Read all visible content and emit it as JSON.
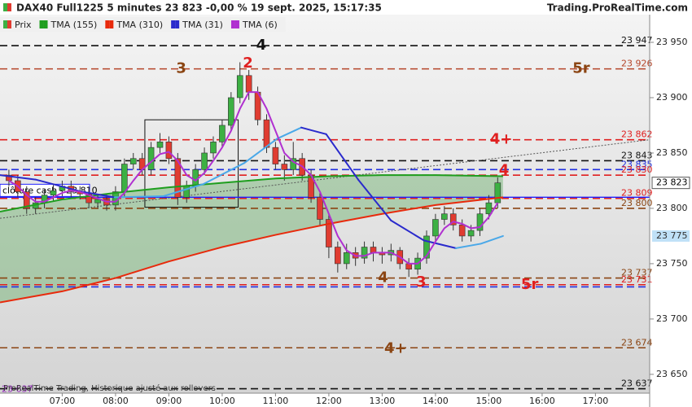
{
  "chart_data": {
    "type": "candlestick",
    "title": "DAX40 Full1225 5 minutes 23 823 -0,00 % 19 sept. 2025, 15:17:35",
    "source": "Trading.ProRealTime.com",
    "footnote": "ProRealTime Trading, Historique ajusté aux rollovers",
    "xlim": [
      "05:50",
      "18:01"
    ],
    "ylim": [
      23633,
      23975
    ],
    "xticks": [
      "07:00",
      "08:00",
      "09:00",
      "10:00",
      "11:00",
      "12:00",
      "13:00",
      "14:00",
      "15:00",
      "16:00",
      "17:00"
    ],
    "yticks": [
      {
        "value": 23950,
        "label": "23 950"
      },
      {
        "value": 23900,
        "label": "23 900"
      },
      {
        "value": 23850,
        "label": "23 850"
      },
      {
        "value": 23800,
        "label": "23 800"
      },
      {
        "value": 23750,
        "label": "23 750"
      },
      {
        "value": 23700,
        "label": "23 700"
      },
      {
        "value": 23650,
        "label": "23 650"
      }
    ],
    "candles": {
      "name": "Prix",
      "up_color": "#3cb043",
      "down_color": "#e03c31",
      "x": [
        "06:00",
        "06:10",
        "06:20",
        "06:30",
        "06:40",
        "06:50",
        "07:00",
        "07:10",
        "07:20",
        "07:30",
        "07:40",
        "07:50",
        "08:00",
        "08:10",
        "08:20",
        "08:30",
        "08:40",
        "08:50",
        "09:00",
        "09:10",
        "09:20",
        "09:30",
        "09:40",
        "09:50",
        "10:00",
        "10:10",
        "10:20",
        "10:30",
        "10:40",
        "10:50",
        "11:00",
        "11:10",
        "11:20",
        "11:30",
        "11:40",
        "11:50",
        "12:00",
        "12:10",
        "12:20",
        "12:30",
        "12:40",
        "12:50",
        "13:00",
        "13:10",
        "13:20",
        "13:30",
        "13:40",
        "13:50",
        "14:00",
        "14:10",
        "14:20",
        "14:30",
        "14:40",
        "14:50",
        "15:00",
        "15:10"
      ],
      "open": [
        23830,
        23825,
        23815,
        23800,
        23805,
        23812,
        23816,
        23820,
        23815,
        23813,
        23805,
        23808,
        23803,
        23815,
        23840,
        23845,
        23835,
        23855,
        23860,
        23845,
        23810,
        23820,
        23835,
        23850,
        23860,
        23875,
        23900,
        23920,
        23905,
        23880,
        23855,
        23840,
        23835,
        23845,
        23830,
        23810,
        23790,
        23765,
        23750,
        23760,
        23755,
        23765,
        23760,
        23758,
        23762,
        23750,
        23745,
        23755,
        23775,
        23790,
        23795,
        23785,
        23775,
        23780,
        23795,
        23805
      ],
      "high": [
        23835,
        23830,
        23820,
        23810,
        23817,
        23821,
        23825,
        23825,
        23820,
        23818,
        23813,
        23813,
        23820,
        23845,
        23850,
        23850,
        23860,
        23868,
        23865,
        23850,
        23825,
        23840,
        23855,
        23865,
        23880,
        23905,
        23932,
        23925,
        23910,
        23885,
        23860,
        23848,
        23860,
        23850,
        23835,
        23815,
        23795,
        23770,
        23768,
        23765,
        23770,
        23770,
        23765,
        23768,
        23765,
        23755,
        23760,
        23780,
        23795,
        23802,
        23800,
        23790,
        23785,
        23800,
        23812,
        23828
      ],
      "low": [
        23820,
        23810,
        23795,
        23795,
        23800,
        23807,
        23811,
        23810,
        23808,
        23800,
        23800,
        23798,
        23798,
        23810,
        23835,
        23830,
        23830,
        23850,
        23840,
        23803,
        23805,
        23815,
        23830,
        23845,
        23855,
        23870,
        23895,
        23898,
        23875,
        23850,
        23835,
        23825,
        23830,
        23825,
        23805,
        23785,
        23755,
        23742,
        23745,
        23748,
        23750,
        23752,
        23750,
        23752,
        23745,
        23738,
        23740,
        23750,
        23770,
        23785,
        23780,
        23770,
        23770,
        23775,
        23790,
        23800
      ],
      "close": [
        23825,
        23815,
        23800,
        23805,
        23812,
        23816,
        23820,
        23815,
        23813,
        23805,
        23808,
        23803,
        23815,
        23840,
        23845,
        23835,
        23855,
        23860,
        23845,
        23810,
        23820,
        23835,
        23850,
        23860,
        23875,
        23900,
        23920,
        23905,
        23880,
        23855,
        23840,
        23835,
        23845,
        23830,
        23810,
        23790,
        23765,
        23750,
        23760,
        23755,
        23765,
        23760,
        23758,
        23762,
        23750,
        23745,
        23755,
        23775,
        23790,
        23795,
        23785,
        23775,
        23780,
        23795,
        23805,
        23823
      ]
    },
    "series": [
      {
        "name": "TMA (155)",
        "color": "#1e9e1e",
        "x": [
          "05:50",
          "07:00",
          "08:00",
          "09:00",
          "10:00",
          "11:00",
          "12:00",
          "13:00",
          "14:00",
          "15:16"
        ],
        "values": [
          23797,
          23808,
          23814,
          23819,
          23823,
          23827,
          23829,
          23830,
          23830,
          23829
        ]
      },
      {
        "name": "TMA (310)",
        "color": "#e82a0c",
        "x": [
          "05:50",
          "07:00",
          "08:00",
          "09:00",
          "10:00",
          "11:00",
          "12:00",
          "13:00",
          "14:00",
          "15:16"
        ],
        "values": [
          23715,
          23725,
          23737,
          23752,
          23765,
          23776,
          23786,
          23795,
          23803,
          23810
        ]
      },
      {
        "name": "TMA (31)",
        "color": "#2a2acc",
        "rising_color": "#4aa8e8",
        "last_label": "23 775",
        "x": [
          "05:50",
          "06:30",
          "07:22",
          "07:59",
          "08:54",
          "09:39",
          "10:25",
          "11:02",
          "11:29",
          "11:57",
          "12:33",
          "13:10",
          "13:47",
          "14:23",
          "14:51",
          "15:16"
        ],
        "values": [
          23830,
          23826,
          23815,
          23810,
          23811,
          23822,
          23841,
          23863,
          23873,
          23867,
          23826,
          23789,
          23771,
          23764,
          23768,
          23775
        ]
      },
      {
        "name": "TMA (6)",
        "color": "#b030d0",
        "x": [
          "06:00",
          "06:10",
          "06:20",
          "06:30",
          "06:40",
          "06:50",
          "07:00",
          "07:10",
          "07:20",
          "07:30",
          "07:40",
          "07:50",
          "08:00",
          "08:10",
          "08:20",
          "08:30",
          "08:40",
          "08:50",
          "09:00",
          "09:10",
          "09:20",
          "09:30",
          "09:40",
          "09:50",
          "10:00",
          "10:10",
          "10:20",
          "10:30",
          "10:40",
          "10:50",
          "11:00",
          "11:10",
          "11:20",
          "11:30",
          "11:40",
          "11:50",
          "12:00",
          "12:10",
          "12:20",
          "12:30",
          "12:40",
          "12:50",
          "13:00",
          "13:10",
          "13:20",
          "13:30",
          "13:40",
          "13:50",
          "14:00",
          "14:10",
          "14:20",
          "14:30",
          "14:40",
          "14:50",
          "15:00",
          "15:10"
        ],
        "values": [
          23825,
          23820,
          23812,
          23806,
          23806,
          23810,
          23814,
          23816,
          23815,
          23812,
          23809,
          23806,
          23806,
          23814,
          23825,
          23835,
          23842,
          23849,
          23851,
          23843,
          23830,
          23825,
          23832,
          23843,
          23855,
          23870,
          23890,
          23905,
          23905,
          23890,
          23870,
          23850,
          23842,
          23838,
          23830,
          23815,
          23795,
          23775,
          23762,
          23757,
          23757,
          23760,
          23760,
          23760,
          23756,
          23750,
          23750,
          23757,
          23770,
          23782,
          23788,
          23786,
          23782,
          23783,
          23792,
          23805
        ]
      }
    ],
    "band_color": "#5aa85a",
    "levels": [
      {
        "value": 23947,
        "color": "#111111",
        "label": "23 947"
      },
      {
        "value": 23926,
        "color": "#b5462a",
        "label": "23 926"
      },
      {
        "value": 23862,
        "color": "#e02020",
        "label": "23 862"
      },
      {
        "value": 23843,
        "color": "#111111",
        "label": "23 843"
      },
      {
        "value": 23835,
        "color": "#2030e0",
        "label": "23 835"
      },
      {
        "value": 23830,
        "color": "#e02020",
        "label": "23 830"
      },
      {
        "value": 23809,
        "color": "#e02020",
        "label": "23 809"
      },
      {
        "value": 23800,
        "color": "#8b4513",
        "label": "23 800"
      },
      {
        "value": 23737,
        "color": "#8b4513",
        "label": "23 737"
      },
      {
        "value": 23731,
        "color": "#e02020",
        "label": "23 731"
      },
      {
        "value": 23729,
        "color": "#2030e0"
      },
      {
        "value": 23674,
        "color": "#8b4513",
        "label": "23 674"
      },
      {
        "value": 23637,
        "color": "#111111",
        "label": "23 637"
      }
    ],
    "close_line": {
      "value": 23810,
      "label": "clôture cash -  23 810",
      "color": "#2020ff"
    },
    "last_price": {
      "value": 23823,
      "label": "23 823"
    },
    "low_label": {
      "value": 23637,
      "label": "23 637",
      "color": "#9a30c0"
    },
    "annotations": [
      {
        "text": "4",
        "x": "10:44",
        "y": 23947,
        "color": "#111111"
      },
      {
        "text": "3",
        "x": "09:14",
        "y": 23926,
        "color": "#8b4513"
      },
      {
        "text": "2",
        "x": "10:29",
        "y": 23931,
        "color": "#e02020"
      },
      {
        "text": "5r",
        "x": "16:44",
        "y": 23926,
        "color": "#8b4513"
      },
      {
        "text": "4+",
        "x": "15:14",
        "y": 23862,
        "color": "#e02020"
      },
      {
        "text": "4",
        "x": "15:17",
        "y": 23834,
        "color": "#e02020"
      },
      {
        "text": "4",
        "x": "13:01",
        "y": 23737,
        "color": "#8b4513"
      },
      {
        "text": "3",
        "x": "13:44",
        "y": 23733,
        "color": "#e02020"
      },
      {
        "text": "5r",
        "x": "15:46",
        "y": 23731,
        "color": "#e02020"
      },
      {
        "text": "4+",
        "x": "13:15",
        "y": 23673,
        "color": "#8b4513"
      }
    ],
    "trendlines": [
      {
        "x": [
          "05:50",
          "18:01"
        ],
        "y": [
          23791,
          23862
        ],
        "color": "#555555"
      }
    ],
    "boxes": [
      {
        "x": [
          "08:33",
          "10:18"
        ],
        "y": [
          23801,
          23880
        ],
        "color": "#111111"
      }
    ]
  }
}
